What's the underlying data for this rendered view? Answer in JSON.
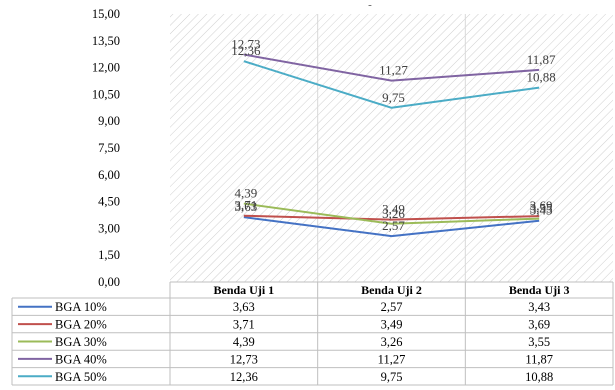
{
  "chart_data": {
    "type": "line",
    "title": "-",
    "categories": [
      "Benda Uji 1",
      "Benda Uji 2",
      "Benda Uji 3"
    ],
    "ylim": [
      0,
      15
    ],
    "yticks": [
      "0,00",
      "1,50",
      "3,00",
      "4,50",
      "6,00",
      "7,50",
      "9,00",
      "10,50",
      "12,00",
      "13,50",
      "15,00"
    ],
    "grid": false,
    "legend": "data-table",
    "series": [
      {
        "name": "BGA 10%",
        "color": "#4472C4",
        "values": [
          3.63,
          2.57,
          3.43
        ],
        "labels": [
          "3,63",
          "2,57",
          "3,43"
        ]
      },
      {
        "name": "BGA 20%",
        "color": "#C0504D",
        "values": [
          3.71,
          3.49,
          3.69
        ],
        "labels": [
          "3,71",
          "3,49",
          "3,69"
        ]
      },
      {
        "name": "BGA 30%",
        "color": "#9BBB59",
        "values": [
          4.39,
          3.26,
          3.55
        ],
        "labels": [
          "4,39",
          "3,26",
          "3,55"
        ]
      },
      {
        "name": "BGA 40%",
        "color": "#8064A2",
        "values": [
          12.73,
          11.27,
          11.87
        ],
        "labels": [
          "12,73",
          "11,27",
          "11,87"
        ]
      },
      {
        "name": "BGA 50%",
        "color": "#4BACC6",
        "values": [
          12.36,
          9.75,
          10.88
        ],
        "labels": [
          "12,36",
          "9,75",
          "10,88"
        ]
      }
    ]
  }
}
